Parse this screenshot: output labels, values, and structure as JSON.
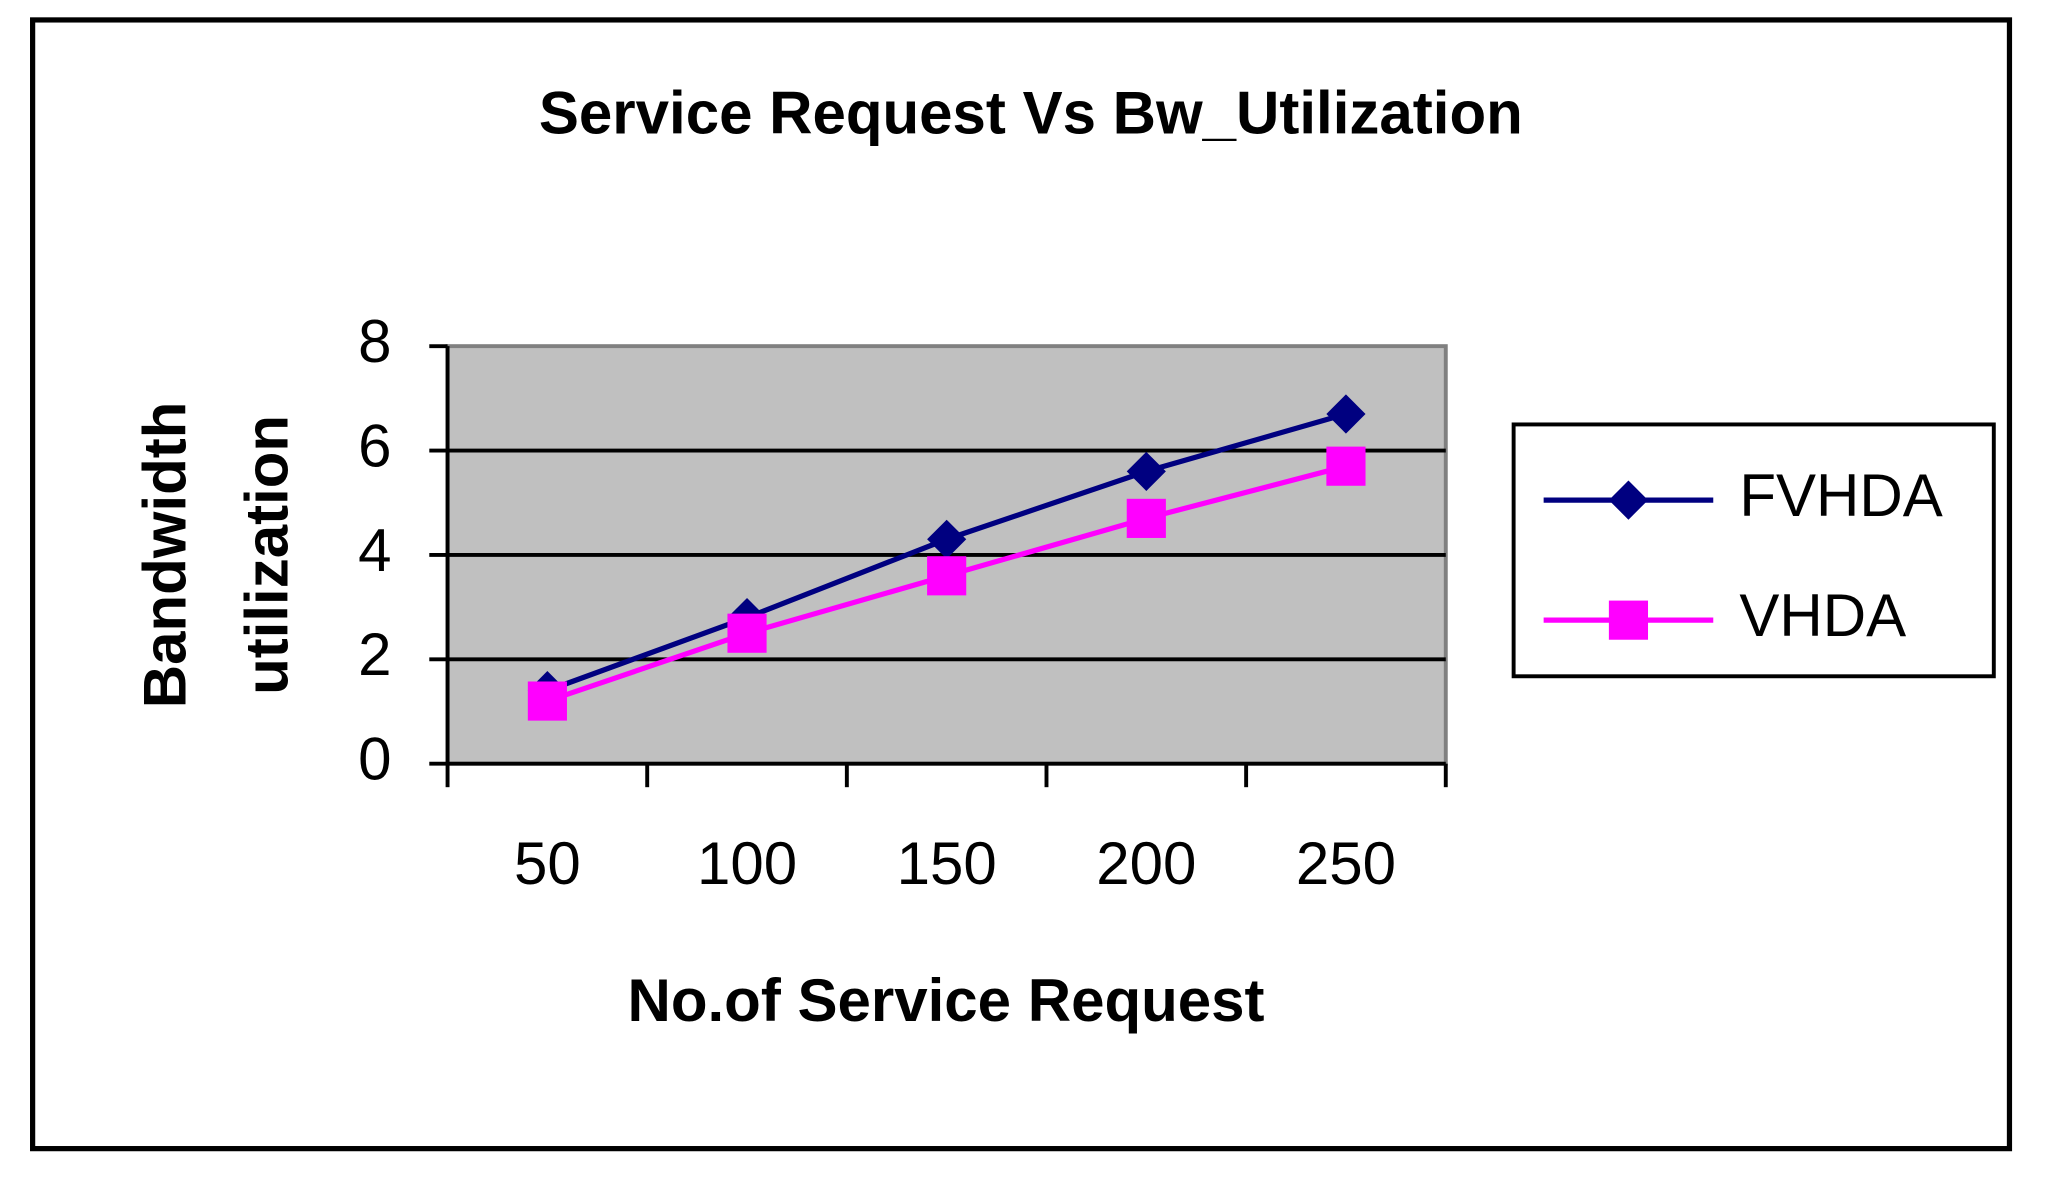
{
  "chart_data": {
    "type": "line",
    "title": "Service Request Vs Bw_Utilization",
    "xlabel": "No.of Service Request",
    "ylabel": [
      "Bandwidth",
      "utilization"
    ],
    "categories": [
      "50",
      "100",
      "150",
      "200",
      "250"
    ],
    "series": [
      {
        "name": "FVHDA",
        "color": "#000080",
        "marker": "diamond",
        "values": [
          1.4,
          2.8,
          4.3,
          5.6,
          6.7
        ]
      },
      {
        "name": "VHDA",
        "color": "#ff00ff",
        "marker": "square",
        "values": [
          1.2,
          2.5,
          3.6,
          4.7,
          5.7
        ]
      }
    ],
    "ylim": [
      0,
      8
    ],
    "yticks": [
      0,
      2,
      4,
      6,
      8
    ],
    "grid": true,
    "legend": "right"
  }
}
